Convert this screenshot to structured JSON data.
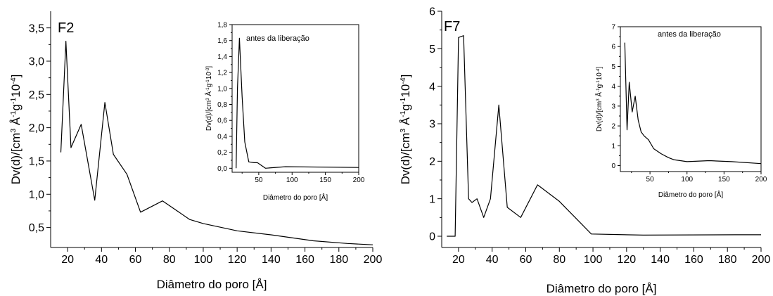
{
  "chart_data": [
    {
      "type": "line",
      "panel_label": "F2",
      "xlabel": "Diâmetro do poro [Å]",
      "ylabel_parts": [
        "Dv(d)/[cm",
        "3",
        " Å",
        "-1",
        "g",
        "-1",
        "10",
        "-4",
        "]"
      ],
      "xlim": [
        10,
        200
      ],
      "ylim": [
        0.2,
        3.75
      ],
      "x_ticks": [
        "20",
        "40",
        "60",
        "80",
        "100",
        "120",
        "140",
        "160",
        "180",
        "200"
      ],
      "y_ticks": [
        "0,5",
        "1,0",
        "1,5",
        "2,0",
        "2,5",
        "3,0",
        "3,5"
      ],
      "y_tick_values": [
        0.5,
        1.0,
        1.5,
        2.0,
        2.5,
        3.0,
        3.5
      ],
      "x_tick_values": [
        20,
        40,
        60,
        80,
        100,
        120,
        140,
        160,
        180,
        200
      ],
      "x": [
        16,
        19,
        22,
        28,
        36,
        42,
        47,
        55,
        63,
        76,
        92,
        100,
        120,
        140,
        165,
        185,
        200
      ],
      "y": [
        1.63,
        3.3,
        1.7,
        2.05,
        0.91,
        2.38,
        1.6,
        1.3,
        0.73,
        0.9,
        0.62,
        0.56,
        0.45,
        0.39,
        0.3,
        0.26,
        0.24
      ],
      "inset": {
        "title": "antes da liberação",
        "xlabel": "Diâmetro do poro [Å]",
        "ylabel_parts": [
          "Dv(d)/[cm",
          "3",
          " Å",
          "-1",
          "g",
          "-1",
          "10",
          "-3",
          "]"
        ],
        "xlim": [
          10,
          200
        ],
        "ylim": [
          -0.05,
          1.8
        ],
        "x_ticks": [
          "50",
          "100",
          "150",
          "200"
        ],
        "x_tick_values": [
          50,
          100,
          150,
          200
        ],
        "y_ticks": [
          "0,0",
          "0,2",
          "0,4",
          "0,6",
          "0,8",
          "1,0",
          "1,2",
          "1,4",
          "1,6",
          "1,8"
        ],
        "y_tick_values": [
          0,
          0.2,
          0.4,
          0.6,
          0.8,
          1.0,
          1.2,
          1.4,
          1.6,
          1.8
        ],
        "x": [
          16,
          18,
          21,
          25,
          29,
          35,
          43,
          48,
          60,
          90,
          200
        ],
        "y": [
          0,
          1.0,
          1.63,
          0.9,
          0.33,
          0.08,
          0.07,
          0.07,
          0.0,
          0.02,
          0.01
        ]
      }
    },
    {
      "type": "line",
      "panel_label": "F7",
      "xlabel": "Diâmetro do poro [Å]",
      "ylabel_parts": [
        "Dv(d)/[cm",
        "3",
        " Å",
        "-1",
        "g",
        "-1",
        "10",
        "-4",
        "]"
      ],
      "xlim": [
        10,
        200
      ],
      "ylim": [
        -0.3,
        6
      ],
      "x_ticks": [
        "20",
        "40",
        "60",
        "80",
        "100",
        "120",
        "140",
        "160",
        "180",
        "200"
      ],
      "x_tick_values": [
        20,
        40,
        60,
        80,
        100,
        120,
        140,
        160,
        180,
        200
      ],
      "y_ticks": [
        "0",
        "1",
        "2",
        "3",
        "4",
        "5",
        "6"
      ],
      "y_tick_values": [
        0,
        1,
        2,
        3,
        4,
        5,
        6
      ],
      "x": [
        13,
        18,
        20,
        23,
        26,
        28,
        31,
        35,
        39,
        44,
        49,
        57,
        67,
        80,
        99,
        130,
        185,
        200
      ],
      "y": [
        0,
        0,
        5.3,
        5.35,
        1.0,
        0.9,
        1.0,
        0.5,
        1.0,
        3.5,
        0.77,
        0.5,
        1.37,
        0.93,
        0.06,
        0.03,
        0.04,
        0.04
      ],
      "inset": {
        "title": "antes da liberação",
        "xlabel": "Diâmetro do poro [Å]",
        "ylabel_parts": [
          "Dv(d)/[cm",
          "3",
          " Å",
          "-1",
          "g",
          "-1",
          "10",
          "-4",
          "]"
        ],
        "xlim": [
          10,
          200
        ],
        "ylim": [
          -0.3,
          7
        ],
        "x_ticks": [
          "50",
          "100",
          "150",
          "200"
        ],
        "x_tick_values": [
          50,
          100,
          150,
          200
        ],
        "y_ticks": [
          "0",
          "1",
          "2",
          "3",
          "4",
          "5",
          "6",
          "7"
        ],
        "y_tick_values": [
          0,
          1,
          2,
          3,
          4,
          5,
          6,
          7
        ],
        "x": [
          16,
          19,
          22,
          26,
          30,
          34,
          38,
          42,
          48,
          55,
          65,
          75,
          82,
          100,
          130,
          160,
          200
        ],
        "y": [
          6.2,
          1.8,
          4.2,
          2.7,
          3.5,
          2.3,
          1.7,
          1.5,
          1.3,
          0.85,
          0.6,
          0.4,
          0.3,
          0.2,
          0.25,
          0.2,
          0.1
        ]
      }
    }
  ]
}
